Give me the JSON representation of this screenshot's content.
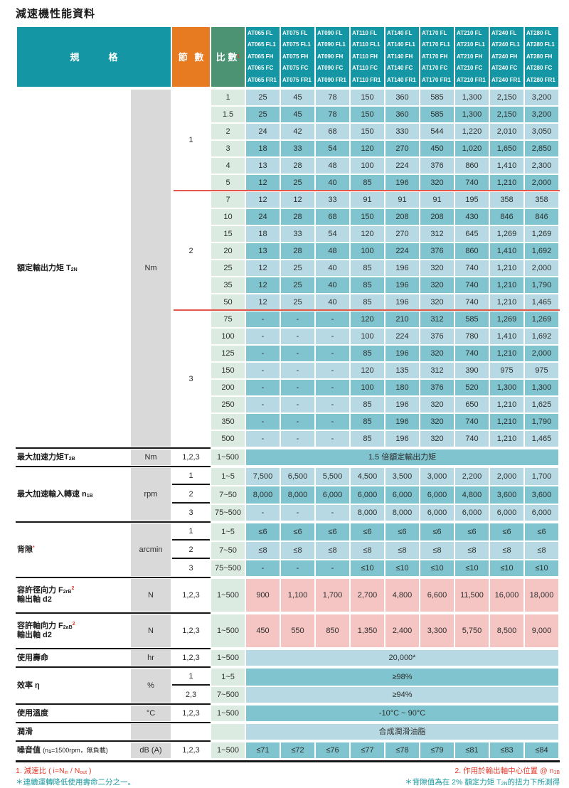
{
  "title": "減速機性能資料",
  "header": {
    "spec_label": "規　格",
    "stage_label": "節 數",
    "ratio_label": "比 數",
    "ratio_sup": "1",
    "models": [
      [
        "AT065 FL",
        "AT065 FL1",
        "AT065 FH",
        "AT065 FC",
        "AT065 FR1"
      ],
      [
        "AT075 FL",
        "AT075 FL1",
        "AT075 FH",
        "AT075 FC",
        "AT075 FR1"
      ],
      [
        "AT090 FL",
        "AT090 FL1",
        "AT090 FH",
        "AT090 FC",
        "AT090 FR1"
      ],
      [
        "AT110 FL",
        "AT110 FL1",
        "AT110 FH",
        "AT110 FC",
        "AT110 FR1"
      ],
      [
        "AT140 FL",
        "AT140 FL1",
        "AT140 FH",
        "AT140 FC",
        "AT140 FR1"
      ],
      [
        "AT170 FL",
        "AT170 FL1",
        "AT170 FH",
        "AT170 FC",
        "AT170 FR1"
      ],
      [
        "AT210 FL",
        "AT210 FL1",
        "AT210 FH",
        "AT210 FC",
        "AT210 FR1"
      ],
      [
        "AT240 FL",
        "AT240 FL1",
        "AT240 FH",
        "AT240 FC",
        "AT240 FR1"
      ],
      [
        "AT280 FL",
        "AT280 FL1",
        "AT280 FH",
        "AT280 FC",
        "AT280 FR1"
      ]
    ]
  },
  "torque": {
    "key": "rated-output-torque",
    "label": [
      [
        "額定輸出力矩 T",
        "n"
      ],
      [
        "2N",
        "sub"
      ]
    ],
    "unit": "Nm",
    "groups": [
      {
        "stage": "1",
        "rows": [
          {
            "ratio": "1",
            "values": [
              "25",
              "45",
              "78",
              "150",
              "360",
              "585",
              "1,300",
              "2,150",
              "3,200"
            ]
          },
          {
            "ratio": "1.5",
            "values": [
              "25",
              "45",
              "78",
              "150",
              "360",
              "585",
              "1,300",
              "2,150",
              "3,200"
            ]
          },
          {
            "ratio": "2",
            "values": [
              "24",
              "42",
              "68",
              "150",
              "330",
              "544",
              "1,220",
              "2,010",
              "3,050"
            ]
          },
          {
            "ratio": "3",
            "values": [
              "18",
              "33",
              "54",
              "120",
              "270",
              "450",
              "1,020",
              "1,650",
              "2,850"
            ]
          },
          {
            "ratio": "4",
            "values": [
              "13",
              "28",
              "48",
              "100",
              "224",
              "376",
              "860",
              "1,410",
              "2,300"
            ]
          },
          {
            "ratio": "5",
            "values": [
              "12",
              "25",
              "40",
              "85",
              "196",
              "320",
              "740",
              "1,210",
              "2,000"
            ]
          }
        ]
      },
      {
        "stage": "2",
        "rows": [
          {
            "ratio": "7",
            "values": [
              "12",
              "12",
              "33",
              "91",
              "91",
              "91",
              "195",
              "358",
              "358"
            ]
          },
          {
            "ratio": "10",
            "values": [
              "24",
              "28",
              "68",
              "150",
              "208",
              "208",
              "430",
              "846",
              "846"
            ]
          },
          {
            "ratio": "15",
            "values": [
              "18",
              "33",
              "54",
              "120",
              "270",
              "312",
              "645",
              "1,269",
              "1,269"
            ]
          },
          {
            "ratio": "20",
            "values": [
              "13",
              "28",
              "48",
              "100",
              "224",
              "376",
              "860",
              "1,410",
              "1,692"
            ]
          },
          {
            "ratio": "25",
            "values": [
              "12",
              "25",
              "40",
              "85",
              "196",
              "320",
              "740",
              "1,210",
              "2,000"
            ]
          },
          {
            "ratio": "35",
            "values": [
              "12",
              "25",
              "40",
              "85",
              "196",
              "320",
              "740",
              "1,210",
              "1,790"
            ]
          },
          {
            "ratio": "50",
            "values": [
              "12",
              "25",
              "40",
              "85",
              "196",
              "320",
              "740",
              "1,210",
              "1,465"
            ]
          }
        ]
      },
      {
        "stage": "3",
        "rows": [
          {
            "ratio": "75",
            "values": [
              "-",
              "-",
              "-",
              "120",
              "210",
              "312",
              "585",
              "1,269",
              "1,269"
            ]
          },
          {
            "ratio": "100",
            "values": [
              "-",
              "-",
              "-",
              "100",
              "224",
              "376",
              "780",
              "1,410",
              "1,692"
            ]
          },
          {
            "ratio": "125",
            "values": [
              "-",
              "-",
              "-",
              "85",
              "196",
              "320",
              "740",
              "1,210",
              "2,000"
            ]
          },
          {
            "ratio": "150",
            "values": [
              "-",
              "-",
              "-",
              "120",
              "135",
              "312",
              "390",
              "975",
              "975"
            ]
          },
          {
            "ratio": "200",
            "values": [
              "-",
              "-",
              "-",
              "100",
              "180",
              "376",
              "520",
              "1,300",
              "1,300"
            ]
          },
          {
            "ratio": "250",
            "values": [
              "-",
              "-",
              "-",
              "85",
              "196",
              "320",
              "650",
              "1,210",
              "1,625"
            ]
          },
          {
            "ratio": "350",
            "values": [
              "-",
              "-",
              "-",
              "85",
              "196",
              "320",
              "740",
              "1,210",
              "1,790"
            ]
          },
          {
            "ratio": "500",
            "values": [
              "-",
              "-",
              "-",
              "85",
              "196",
              "320",
              "740",
              "1,210",
              "1,465"
            ]
          }
        ]
      }
    ]
  },
  "sections": [
    {
      "key": "max-accel-torque",
      "label": [
        [
          "最大加速力矩T",
          "n"
        ],
        [
          "2B",
          "sub"
        ]
      ],
      "unit": "Nm",
      "rows": [
        {
          "stage": "1,2,3",
          "ratio": "1~500",
          "span": "1.5 倍額定輸出力矩",
          "tone": "dark"
        }
      ]
    },
    {
      "key": "max-accel-input-speed",
      "label": [
        [
          "最大加速輸入轉速 n",
          "n"
        ],
        [
          "1B",
          "sub"
        ]
      ],
      "unit": "rpm",
      "rows": [
        {
          "stage": "1",
          "ratio": "1~5",
          "values": [
            "7,500",
            "6,500",
            "5,500",
            "4,500",
            "3,500",
            "3,000",
            "2,200",
            "2,000",
            "1,700"
          ],
          "tone": "light"
        },
        {
          "stage": "2",
          "ratio": "7~50",
          "values": [
            "8,000",
            "8,000",
            "6,000",
            "6,000",
            "6,000",
            "6,000",
            "4,800",
            "3,600",
            "3,600"
          ],
          "tone": "dark"
        },
        {
          "stage": "3",
          "ratio": "75~500",
          "values": [
            "-",
            "-",
            "-",
            "8,000",
            "8,000",
            "6,000",
            "6,000",
            "6,000",
            "6,000"
          ],
          "tone": "light"
        }
      ]
    },
    {
      "key": "backlash",
      "label": [
        [
          "背隙",
          "n"
        ],
        [
          "*",
          "sup"
        ]
      ],
      "unit": "arcmin",
      "rows": [
        {
          "stage": "1",
          "ratio": "1~5",
          "values": [
            "≤6",
            "≤6",
            "≤6",
            "≤6",
            "≤6",
            "≤6",
            "≤6",
            "≤6",
            "≤6"
          ],
          "tone": "dark"
        },
        {
          "stage": "2",
          "ratio": "7~50",
          "values": [
            "≤8",
            "≤8",
            "≤8",
            "≤8",
            "≤8",
            "≤8",
            "≤8",
            "≤8",
            "≤8"
          ],
          "tone": "light"
        },
        {
          "stage": "3",
          "ratio": "75~500",
          "values": [
            "-",
            "-",
            "-",
            "≤10",
            "≤10",
            "≤10",
            "≤10",
            "≤10",
            "≤10"
          ],
          "tone": "dark"
        }
      ]
    },
    {
      "key": "radial-force",
      "label": [
        [
          "容許徑向力 F",
          "n"
        ],
        [
          "2rB",
          "sub"
        ],
        [
          "2",
          "sup"
        ],
        [
          "輸出軸 d2",
          "br"
        ]
      ],
      "unit": "N",
      "tall": true,
      "rows": [
        {
          "stage": "1,2,3",
          "ratio": "1~500",
          "values": [
            "900",
            "1,100",
            "1,700",
            "2,700",
            "4,800",
            "6,600",
            "11,500",
            "16,000",
            "18,000"
          ],
          "tone": "pink"
        }
      ]
    },
    {
      "key": "axial-force",
      "label": [
        [
          "容許軸向力 F",
          "n"
        ],
        [
          "2aB",
          "sub"
        ],
        [
          "2",
          "sup"
        ],
        [
          "輸出軸 d2",
          "br"
        ]
      ],
      "unit": "N",
      "tall": true,
      "rows": [
        {
          "stage": "1,2,3",
          "ratio": "1~500",
          "values": [
            "450",
            "550",
            "850",
            "1,350",
            "2,400",
            "3,300",
            "5,750",
            "8,500",
            "9,000"
          ],
          "tone": "pink"
        }
      ]
    },
    {
      "key": "service-life",
      "label": [
        [
          "使用壽命",
          "n"
        ]
      ],
      "unit": "hr",
      "rows": [
        {
          "stage": "1,2,3",
          "ratio": "1~500",
          "span": "20,000*",
          "tone": "light"
        }
      ]
    },
    {
      "key": "efficiency",
      "label": [
        [
          "效率 η",
          "n"
        ]
      ],
      "unit": "%",
      "rows": [
        {
          "stage": "1",
          "ratio": "1~5",
          "span": "≥98%",
          "tone": "dark"
        },
        {
          "stage": "2,3",
          "ratio": "7~500",
          "span": "≥94%",
          "tone": "light"
        }
      ]
    },
    {
      "key": "operating-temp",
      "label": [
        [
          "使用溫度",
          "n"
        ]
      ],
      "unit": "°C",
      "rows": [
        {
          "stage": "1,2,3",
          "ratio": "1~500",
          "span": "-10°C ~ 90°C",
          "tone": "dark"
        }
      ]
    },
    {
      "key": "lubrication",
      "label": [
        [
          "潤滑",
          "n"
        ]
      ],
      "unit": "",
      "rows": [
        {
          "stage": "",
          "ratio": "",
          "span": "合成潤滑油脂",
          "tone": "light",
          "short": true
        }
      ]
    },
    {
      "key": "noise",
      "label": [
        [
          "噪音值 ",
          "n"
        ],
        [
          "(n",
          "sm"
        ],
        [
          "1",
          "sub"
        ],
        [
          "=1500rpm，無負載)",
          "sm"
        ]
      ],
      "unit": "dB (A)",
      "rows": [
        {
          "stage": "1,2,3",
          "ratio": "1~500",
          "values": [
            "≤71",
            "≤72",
            "≤76",
            "≤77",
            "≤78",
            "≤79",
            "≤81",
            "≤83",
            "≤84"
          ],
          "tone": "dark"
        }
      ]
    }
  ],
  "footnotes": {
    "left": [
      {
        "color": "red",
        "parts": [
          [
            "1. 減速比 ( i=N",
            "n"
          ],
          [
            "in",
            "sub"
          ],
          [
            " / N",
            "n"
          ],
          [
            "out",
            "sub"
          ],
          [
            " )",
            "n"
          ]
        ]
      },
      {
        "color": "teal",
        "parts": [
          [
            "＊連續運轉降低使用壽命二分之一。",
            "n"
          ]
        ]
      }
    ],
    "right": [
      {
        "color": "red",
        "parts": [
          [
            "2. 作用於輸出軸中心位置 @ n",
            "n"
          ],
          [
            "1B",
            "sub"
          ]
        ]
      },
      {
        "color": "teal",
        "parts": [
          [
            "＊背隙值為在 2% 額定力矩 T",
            "n"
          ],
          [
            "2N",
            "sub"
          ],
          [
            "的扭力下所測得",
            "n"
          ]
        ]
      }
    ]
  },
  "colors": {
    "teal_header": "#1496a5",
    "orange_header": "#e67b21",
    "green_header": "#4c9373",
    "mint_cell": "#dcebe2",
    "light_cell": "#b7d9e3",
    "dark_cell": "#7fc4ce",
    "pink_cell": "#f4c5c3",
    "gray_unit": "#d9d9d9",
    "red_accent": "#e2392b",
    "red_group_line": "#e4564a"
  }
}
